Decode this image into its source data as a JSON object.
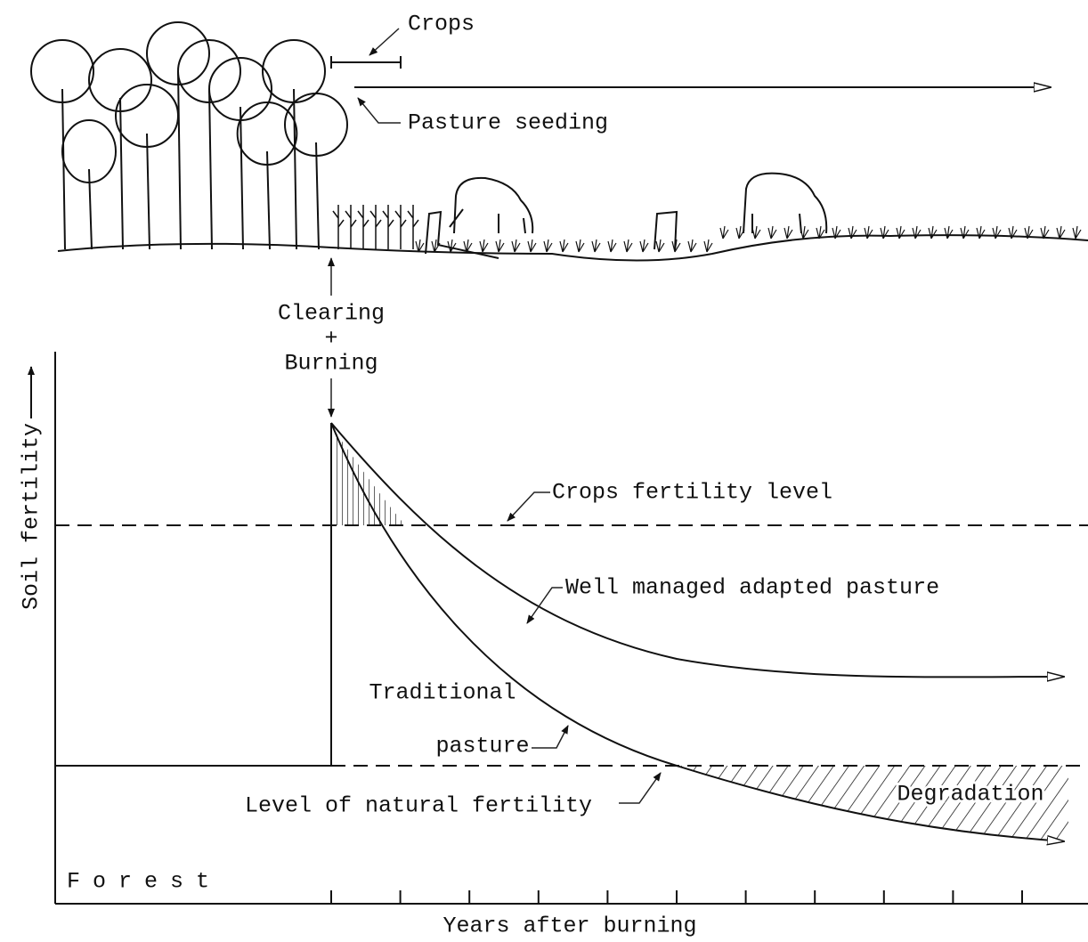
{
  "illustration": {
    "crops": "Crops",
    "pasture_seeding": "Pasture seeding",
    "clearing": "Clearing",
    "plus": "+",
    "burning": "Burning"
  },
  "graph": {
    "y_axis_label": "Soil fertility",
    "x_axis_label": "Years after burning",
    "crops_fertility_level": "Crops fertility level",
    "well_managed": "Well managed adapted pasture",
    "traditional_1": "Traditional",
    "traditional_2": "pasture",
    "natural_fertility": "Level of natural fertility",
    "degradation": "Degradation",
    "forest": "Forest"
  }
}
